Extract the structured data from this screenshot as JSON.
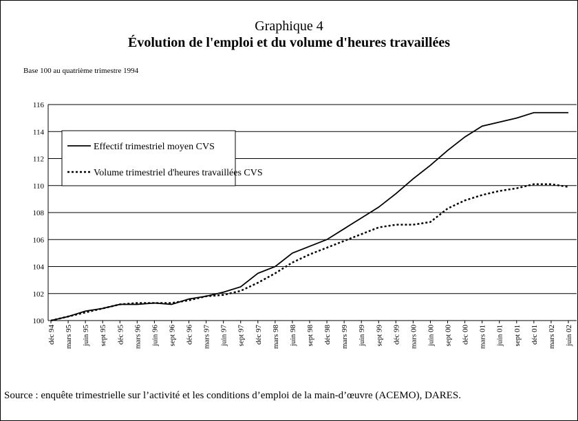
{
  "chart_data": {
    "type": "line",
    "title": "Graphique 4",
    "subtitle": "Évolution de l'emploi et du volume d'heures travaillées",
    "y_axis_label": "Base 100 au quatrième trimestre 1994",
    "source": "Source : enquête trimestrielle sur l’activité et les conditions d’emploi de la main-d’œuvre (ACEMO), DARES.",
    "categories": [
      "déc 94",
      "mars 95",
      "juin 95",
      "sept 95",
      "déc 95",
      "mars 96",
      "juin 96",
      "sept 96",
      "déc 96",
      "mars 97",
      "juin 97",
      "sept 97",
      "déc 97",
      "mars 98",
      "juin 98",
      "sept 98",
      "déc 98",
      "mars 99",
      "juin 99",
      "sept 99",
      "déc 99",
      "mars 00",
      "juin 00",
      "sept 00",
      "déc 00",
      "mars 01",
      "juin 01",
      "sept 01",
      "déc 01",
      "mars 02",
      "juin 02"
    ],
    "series": [
      {
        "name": "Effectif trimestriel moyen CVS",
        "color": "#000000",
        "dash": "solid",
        "values": [
          100,
          100.3,
          100.7,
          100.9,
          101.2,
          101.2,
          101.3,
          101.2,
          101.6,
          101.8,
          102.1,
          102.5,
          103.5,
          104.0,
          105.0,
          105.5,
          106.0,
          106.8,
          107.6,
          108.4,
          109.4,
          110.5,
          111.5,
          112.6,
          113.6,
          114.4,
          114.7,
          115.0,
          115.4,
          115.4,
          115.4
        ]
      },
      {
        "name": "Volume trimestriel d'heures travaillées CVS",
        "color": "#000000",
        "dash": "dotted",
        "values": [
          100,
          100.3,
          100.6,
          100.9,
          101.2,
          101.3,
          101.3,
          101.3,
          101.5,
          101.8,
          101.9,
          102.2,
          102.8,
          103.5,
          104.3,
          104.9,
          105.4,
          105.9,
          106.4,
          106.9,
          107.1,
          107.1,
          107.3,
          108.3,
          108.9,
          109.3,
          109.6,
          109.8,
          110.1,
          110.1,
          109.9
        ]
      }
    ],
    "ylim": [
      100,
      116
    ],
    "yticks": [
      100,
      102,
      104,
      106,
      108,
      110,
      112,
      114,
      116
    ],
    "grid": true
  }
}
